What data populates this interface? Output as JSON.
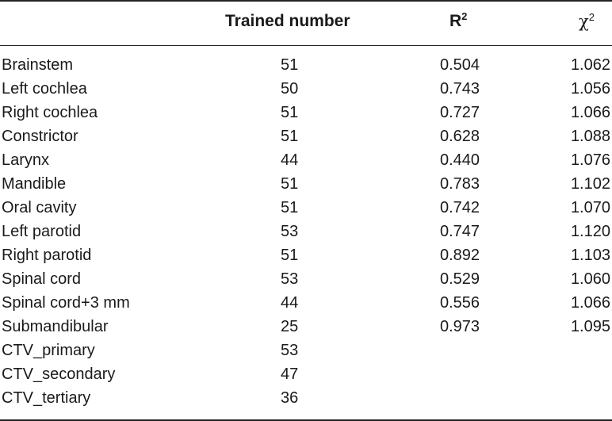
{
  "table": {
    "headers": {
      "name": "",
      "trained": "Trained number",
      "r2_base": "R",
      "r2_sup": "2",
      "chi_base": "χ",
      "chi_sup": "2"
    },
    "rows": [
      {
        "name": "Brainstem",
        "trained": "51",
        "r2": "0.504",
        "chi2": "1.062"
      },
      {
        "name": "Left cochlea",
        "trained": "50",
        "r2": "0.743",
        "chi2": "1.056"
      },
      {
        "name": "Right cochlea",
        "trained": "51",
        "r2": "0.727",
        "chi2": "1.066"
      },
      {
        "name": "Constrictor",
        "trained": "51",
        "r2": "0.628",
        "chi2": "1.088"
      },
      {
        "name": "Larynx",
        "trained": "44",
        "r2": "0.440",
        "chi2": "1.076"
      },
      {
        "name": "Mandible",
        "trained": "51",
        "r2": "0.783",
        "chi2": "1.102"
      },
      {
        "name": "Oral cavity",
        "trained": "51",
        "r2": "0.742",
        "chi2": "1.070"
      },
      {
        "name": "Left parotid",
        "trained": "53",
        "r2": "0.747",
        "chi2": "1.120"
      },
      {
        "name": "Right parotid",
        "trained": "51",
        "r2": "0.892",
        "chi2": "1.103"
      },
      {
        "name": "Spinal cord",
        "trained": "53",
        "r2": "0.529",
        "chi2": "1.060"
      },
      {
        "name": "Spinal cord+3 mm",
        "trained": "44",
        "r2": "0.556",
        "chi2": "1.066"
      },
      {
        "name": "Submandibular",
        "trained": "25",
        "r2": "0.973",
        "chi2": "1.095"
      },
      {
        "name": "CTV_primary",
        "trained": "53",
        "r2": "",
        "chi2": ""
      },
      {
        "name": "CTV_secondary",
        "trained": "47",
        "r2": "",
        "chi2": ""
      },
      {
        "name": "CTV_tertiary",
        "trained": "36",
        "r2": "",
        "chi2": ""
      }
    ]
  }
}
